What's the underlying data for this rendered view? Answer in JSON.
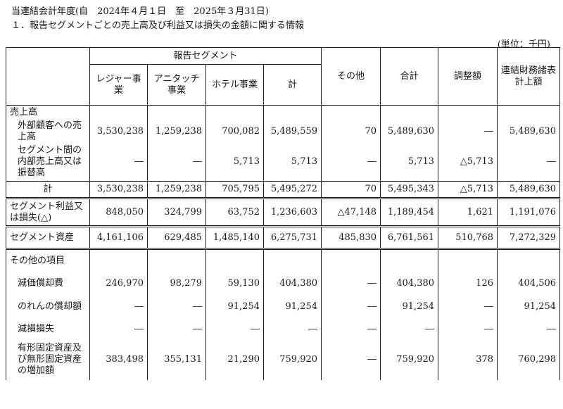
{
  "period": "当連結会計年度(自　2024年４月１日　至　2025年３月31日)",
  "heading": "１．報告セグメントごとの売上高及び利益又は損失の金額に関する情報",
  "unit": "(単位：千円)",
  "header": {
    "group": "報告セグメント",
    "leisure": "レジャー事業",
    "anitouch": "アニタッチ事業",
    "hotel": "ホテル事業",
    "subtotal": "計",
    "other": "その他",
    "total": "合計",
    "adjust": "調整額",
    "consolidated": "連結財務諸表計上額"
  },
  "rows": {
    "sales_label": "売上高",
    "external": {
      "label": "外部顧客への売上高",
      "v": [
        "3,530,238",
        "1,259,238",
        "700,082",
        "5,489,559",
        "70",
        "5,489,630",
        "―",
        "5,489,630"
      ]
    },
    "internal": {
      "label": "セグメント間の内部売上高又は振替高",
      "v": [
        "―",
        "―",
        "5,713",
        "5,713",
        "―",
        "5,713",
        "△5,713",
        "―"
      ]
    },
    "total": {
      "label": "計",
      "v": [
        "3,530,238",
        "1,259,238",
        "705,795",
        "5,495,272",
        "70",
        "5,495,343",
        "△5,713",
        "5,489,630"
      ]
    },
    "profit": {
      "label": "セグメント利益又は損失(△)",
      "v": [
        "848,050",
        "324,799",
        "63,752",
        "1,236,603",
        "△47,148",
        "1,189,454",
        "1,621",
        "1,191,076"
      ]
    },
    "assets": {
      "label": "セグメント資産",
      "v": [
        "4,161,106",
        "629,485",
        "1,485,140",
        "6,275,731",
        "485,830",
        "6,761,561",
        "510,768",
        "7,272,329"
      ]
    },
    "other_label": "その他の項目",
    "depreciation": {
      "label": "減価償却費",
      "v": [
        "246,970",
        "98,279",
        "59,130",
        "404,380",
        "―",
        "404,380",
        "126",
        "404,506"
      ]
    },
    "goodwill": {
      "label": "のれんの償却額",
      "v": [
        "―",
        "―",
        "91,254",
        "91,254",
        "―",
        "91,254",
        "―",
        "91,254"
      ]
    },
    "impairment": {
      "label": "減損損失",
      "v": [
        "―",
        "―",
        "―",
        "―",
        "―",
        "―",
        "―",
        "―"
      ]
    },
    "capex": {
      "label": "有形固定資産及び無形固定資産の増加額",
      "v": [
        "383,498",
        "355,131",
        "21,290",
        "759,920",
        "―",
        "759,920",
        "378",
        "760,298"
      ]
    }
  }
}
